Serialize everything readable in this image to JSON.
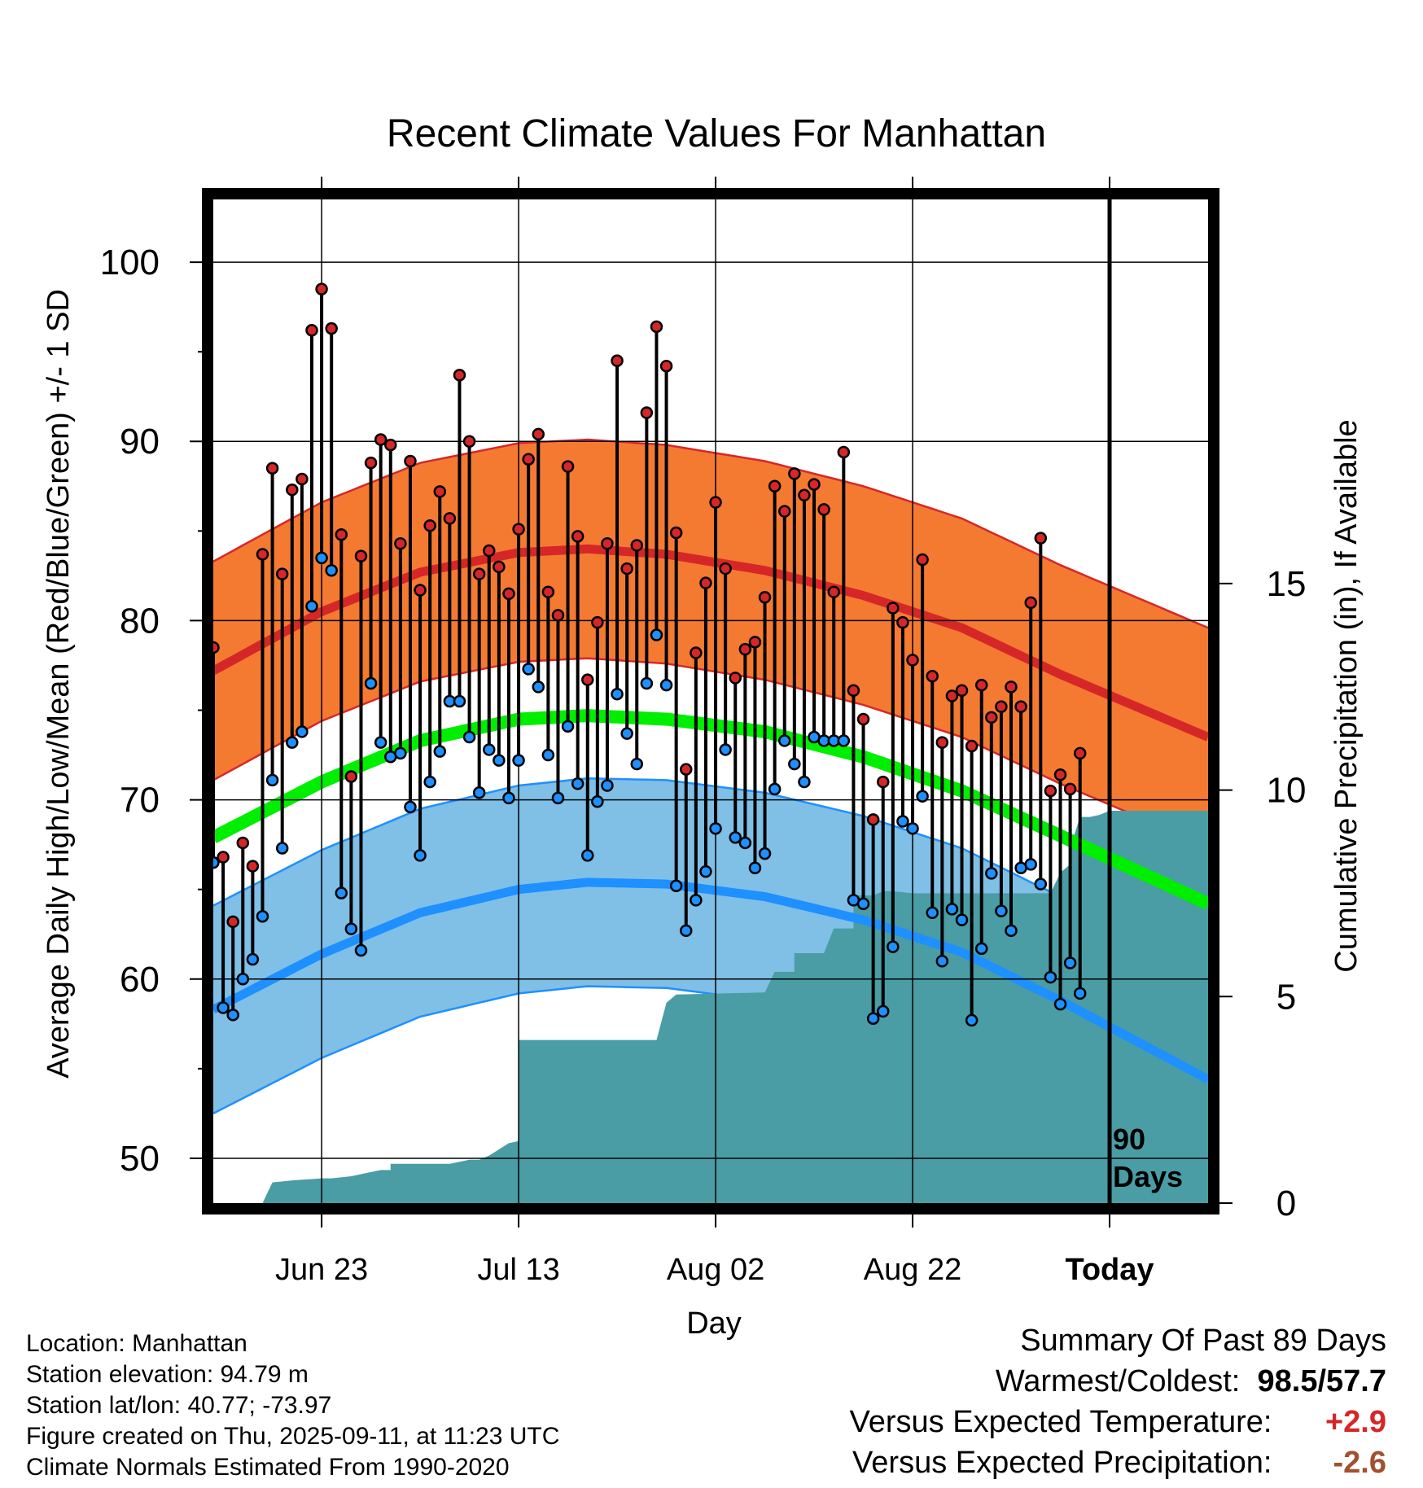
{
  "chart_data": {
    "type": "line",
    "title": "Recent Climate Values For Manhattan",
    "xlabel": "Day",
    "ylabel": "Average Daily High/Low/Mean (Red/Blue/Green) +/- 1 SD",
    "ylabel_right": "Cumulative Precipitation (in), If Available",
    "ylim": [
      47.5,
      103.5
    ],
    "y_ticks": [
      50,
      60,
      70,
      80,
      90,
      100
    ],
    "y2lim": [
      0,
      24.3
    ],
    "y2_ticks": [
      0,
      5,
      10,
      15
    ],
    "xlim": [
      -11,
      90
    ],
    "x_ticks": [
      {
        "day": 0,
        "label": "Jun 23"
      },
      {
        "day": 20,
        "label": "Jul 13"
      },
      {
        "day": 40,
        "label": "Aug 02"
      },
      {
        "day": 60,
        "label": "Aug 22"
      },
      {
        "day": 80,
        "label": "Today"
      }
    ],
    "today_marker": {
      "day": 80,
      "label_line1": "90",
      "label_line2": "Days"
    },
    "normal_high": {
      "days": [
        -11,
        0,
        10,
        20,
        27,
        35,
        45,
        55,
        65,
        75,
        90
      ],
      "values": [
        77.2,
        80.5,
        82.7,
        83.8,
        84.0,
        83.7,
        82.8,
        81.4,
        79.6,
        77.0,
        73.5
      ]
    },
    "normal_high_sd": 6.1,
    "normal_low": {
      "days": [
        -11,
        0,
        10,
        20,
        27,
        35,
        45,
        55,
        65,
        75,
        90
      ],
      "values": [
        58.3,
        61.4,
        63.7,
        65.0,
        65.4,
        65.3,
        64.6,
        63.3,
        61.5,
        58.8,
        54.4
      ]
    },
    "normal_low_sd": 5.8,
    "normal_mean": {
      "days": [
        -11,
        0,
        10,
        20,
        27,
        35,
        45,
        55,
        65,
        75,
        90
      ],
      "values": [
        67.9,
        71.0,
        73.3,
        74.5,
        74.7,
        74.5,
        73.8,
        72.4,
        70.5,
        68.0,
        64.2
      ]
    },
    "daily_high": [
      78.5,
      66.8,
      63.2,
      67.6,
      66.3,
      83.7,
      88.5,
      82.6,
      87.3,
      87.9,
      96.2,
      98.5,
      96.3,
      84.8,
      71.3,
      83.6,
      88.8,
      90.1,
      89.8,
      84.3,
      88.9,
      81.7,
      85.3,
      87.2,
      85.7,
      93.7,
      90.0,
      82.6,
      83.9,
      83.0,
      81.5,
      85.1,
      89.0,
      90.4,
      81.6,
      80.3,
      88.6,
      84.7,
      76.7,
      79.9,
      84.3,
      94.5,
      82.9,
      84.2,
      91.6,
      96.4,
      94.2,
      84.9,
      71.7,
      78.2,
      82.1,
      86.6,
      82.9,
      76.8,
      78.4,
      78.8,
      81.3,
      87.5,
      86.1,
      88.2,
      87.0,
      87.6,
      86.2,
      81.6,
      89.4,
      76.1,
      74.5,
      68.9,
      71.0,
      80.7,
      79.9,
      77.8,
      83.4,
      76.9,
      73.2,
      75.8,
      76.1,
      73.0,
      76.4,
      74.6,
      75.2,
      76.3,
      75.2,
      81.0,
      84.6,
      70.5,
      71.4,
      70.6,
      72.6
    ],
    "daily_low": [
      66.5,
      58.4,
      58.0,
      60.0,
      61.1,
      63.5,
      71.1,
      67.3,
      73.2,
      73.8,
      80.8,
      83.5,
      82.8,
      64.8,
      62.8,
      61.6,
      76.5,
      73.2,
      72.4,
      72.6,
      69.6,
      66.9,
      71.0,
      72.7,
      75.5,
      75.5,
      73.5,
      70.4,
      72.8,
      72.2,
      70.1,
      72.2,
      77.3,
      76.3,
      72.5,
      70.1,
      74.1,
      70.9,
      66.9,
      69.9,
      70.8,
      75.9,
      73.7,
      72.0,
      76.5,
      79.2,
      76.4,
      65.2,
      62.7,
      64.4,
      66.0,
      68.4,
      72.8,
      67.9,
      67.6,
      66.2,
      67.0,
      70.6,
      73.3,
      72.0,
      71.0,
      73.5,
      73.3,
      73.3,
      73.3,
      64.4,
      64.2,
      57.8,
      58.2,
      61.8,
      68.8,
      68.4,
      70.2,
      63.7,
      61.0,
      63.9,
      63.3,
      57.7,
      61.7,
      65.9,
      63.8,
      62.7,
      66.2,
      66.4,
      65.3,
      60.1,
      58.6,
      60.9,
      59.2
    ],
    "precip_cumulative": {
      "days": [
        -11,
        -6,
        -5,
        -5,
        -3,
        -3,
        0,
        1,
        3,
        3,
        5,
        6,
        7,
        7,
        13,
        14,
        15,
        16,
        17,
        17,
        19,
        19,
        20,
        20,
        22,
        22,
        34,
        35,
        36,
        36,
        45,
        46,
        48,
        48,
        51,
        52,
        54,
        54,
        56,
        57,
        58,
        60,
        74,
        75,
        76,
        76,
        77,
        78,
        79,
        80,
        81,
        90
      ],
      "values": [
        0,
        0,
        0.5,
        0.5,
        0.55,
        0.55,
        0.6,
        0.6,
        0.65,
        0.65,
        0.75,
        0.8,
        0.8,
        0.95,
        0.95,
        1.0,
        1.05,
        1.05,
        1.15,
        1.15,
        1.45,
        1.45,
        1.5,
        3.95,
        3.95,
        3.95,
        3.95,
        4.85,
        5.05,
        5.05,
        5.1,
        5.6,
        5.6,
        6.05,
        6.05,
        6.65,
        6.65,
        7.45,
        7.45,
        7.55,
        7.55,
        7.5,
        7.5,
        8.0,
        8.2,
        8.6,
        9.35,
        9.35,
        9.4,
        9.5,
        9.5,
        9.5
      ]
    },
    "colors": {
      "high": "#d62728",
      "high_band": "#f47a32",
      "low": "#1e90ff",
      "low_band": "#80bfe6",
      "mean": "#00ee00",
      "precip": "#4a9da5"
    },
    "grid": true
  },
  "info": {
    "location": "Location: Manhattan",
    "elevation": "Station elevation: 94.79 m",
    "latlon": "Station lat/lon: 40.77; -73.97",
    "created": "Figure created on Thu, 2025-09-11, at 11:23 UTC",
    "normals": "Climate Normals Estimated From 1990-2020"
  },
  "summary": {
    "title": "Summary Of Past 89 Days",
    "warm_cold_label": "Warmest/Coldest:",
    "warmest": "98.5",
    "separator": "/",
    "coldest": "57.7",
    "temp_label": "Versus Expected Temperature:",
    "temp_value": "+2.9",
    "temp_color": "#d62728",
    "precip_label": "Versus Expected Precipitation:",
    "precip_value": "-2.6",
    "precip_color": "#a0522d"
  }
}
